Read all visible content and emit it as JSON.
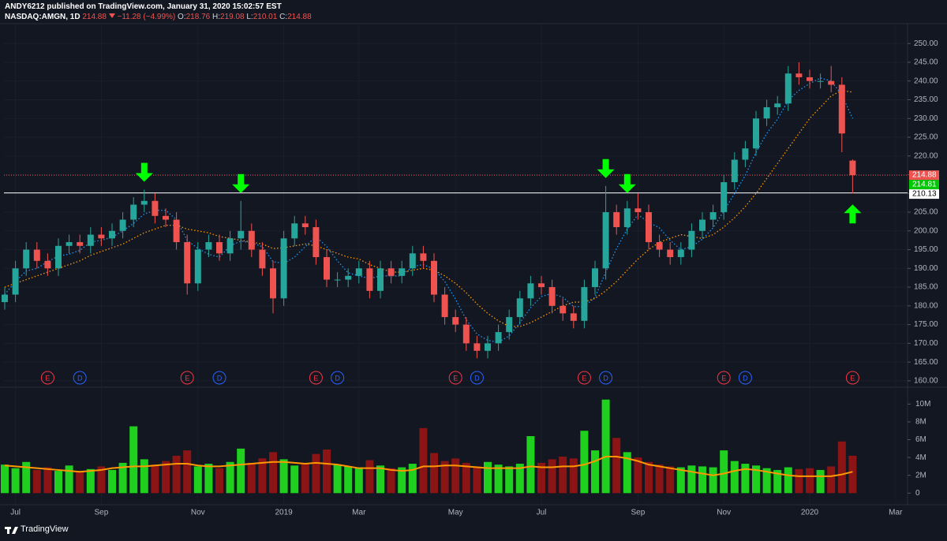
{
  "header": {
    "publisher_line": "ANDY6212 published on TradingView.com, January 31, 2020 15:02:57 EST",
    "symbol": "NASDAQ:AMGN, 1D",
    "change": "−11.28 (−4.99%)",
    "open_label": "O:",
    "high_label": "H:",
    "low_label": "L:",
    "close_label": "C:"
  },
  "footer": {
    "brand": "TradingView"
  },
  "chart_data": {
    "type": "candlestick",
    "grid": true,
    "up_color": "#26a69a",
    "down_color": "#ef5350",
    "categories": [
      null,
      "Jul",
      null,
      null,
      null,
      null,
      null,
      null,
      null,
      "Sep",
      null,
      null,
      null,
      null,
      null,
      null,
      null,
      null,
      "Nov",
      null,
      null,
      null,
      null,
      null,
      null,
      null,
      "2019",
      null,
      null,
      null,
      null,
      null,
      null,
      "Mar",
      null,
      null,
      null,
      null,
      null,
      null,
      null,
      null,
      "May",
      null,
      null,
      null,
      null,
      null,
      null,
      null,
      "Jul",
      null,
      null,
      null,
      null,
      null,
      null,
      null,
      null,
      "Sep",
      null,
      null,
      null,
      null,
      null,
      null,
      null,
      "Nov",
      null,
      null,
      null,
      null,
      null,
      null,
      null,
      "2020",
      null,
      null,
      null,
      null,
      null,
      null,
      null,
      "Mar",
      null
    ],
    "open": [
      181,
      183,
      190,
      195,
      192,
      190,
      196,
      197,
      196,
      199,
      198,
      200,
      203,
      207,
      208,
      204,
      203,
      197,
      186,
      195,
      197,
      194,
      198,
      200,
      195,
      190,
      182,
      198,
      202,
      201,
      193,
      187,
      187,
      188,
      190,
      184,
      190,
      188,
      190,
      194,
      192,
      183,
      177,
      175,
      170,
      168,
      170,
      173,
      177,
      182,
      186,
      185,
      180,
      178,
      176,
      185,
      190,
      205,
      201,
      206,
      205,
      197,
      195,
      193,
      195,
      200,
      203,
      205,
      213,
      219,
      222,
      230,
      233,
      234,
      242,
      241,
      240,
      240,
      239,
      218.76,
      null,
      null,
      null,
      null,
      null
    ],
    "high": [
      185,
      192,
      197,
      197,
      194,
      198,
      199,
      199,
      201,
      201,
      202,
      205,
      209,
      211,
      210,
      206,
      205,
      199,
      197,
      199,
      199,
      200,
      208,
      202,
      197,
      192,
      200,
      204,
      204,
      203,
      195,
      189,
      190,
      192,
      192,
      192,
      192,
      192,
      196,
      196,
      194,
      185,
      179,
      177,
      172,
      172,
      175,
      179,
      184,
      188,
      188,
      187,
      182,
      180,
      187,
      192,
      212,
      207,
      208,
      210,
      207,
      199,
      197,
      197,
      202,
      205,
      207,
      215,
      221,
      224,
      232,
      235,
      236,
      244,
      245,
      243,
      242,
      244,
      241,
      219.08,
      null,
      null,
      null,
      null,
      null
    ],
    "low": [
      179,
      181,
      188,
      190,
      188,
      188,
      194,
      194,
      194,
      196,
      196,
      198,
      201,
      205,
      202,
      201,
      195,
      183,
      184,
      193,
      192,
      192,
      195,
      193,
      188,
      178,
      180,
      196,
      199,
      191,
      185,
      185,
      185,
      186,
      182,
      182,
      186,
      186,
      188,
      190,
      181,
      175,
      173,
      168,
      166,
      166,
      168,
      171,
      175,
      180,
      183,
      178,
      176,
      174,
      174,
      183,
      187,
      199,
      199,
      203,
      195,
      193,
      191,
      191,
      193,
      198,
      201,
      203,
      211,
      217,
      220,
      228,
      231,
      232,
      239,
      238,
      238,
      237,
      221,
      210.01,
      null,
      null,
      null,
      null,
      null
    ],
    "close": [
      183,
      190,
      195,
      192,
      190,
      196,
      197,
      196,
      199,
      198,
      200,
      203,
      207,
      208,
      204,
      203,
      197,
      186,
      195,
      197,
      194,
      198,
      200,
      195,
      190,
      182,
      198,
      202,
      201,
      193,
      187,
      187,
      188,
      190,
      184,
      190,
      188,
      190,
      194,
      192,
      183,
      177,
      175,
      170,
      168,
      170,
      173,
      177,
      182,
      186,
      185,
      180,
      178,
      176,
      185,
      190,
      205,
      201,
      206,
      205,
      197,
      195,
      193,
      195,
      200,
      203,
      205,
      213,
      219,
      222,
      230,
      233,
      234,
      242,
      241,
      240,
      240,
      239,
      226,
      214.88,
      null,
      null,
      null,
      null,
      null
    ],
    "ylim": [
      158.5,
      255.3
    ],
    "yticks": [
      {
        "value": 160,
        "label": "160.00"
      },
      {
        "value": 165,
        "label": "165.00"
      },
      {
        "value": 170,
        "label": "170.00"
      },
      {
        "value": 175,
        "label": "175.00"
      },
      {
        "value": 180,
        "label": "180.00"
      },
      {
        "value": 185,
        "label": "185.00"
      },
      {
        "value": 190,
        "label": "190.00"
      },
      {
        "value": 195,
        "label": "195.00"
      },
      {
        "value": 200,
        "label": "200.00"
      },
      {
        "value": 205,
        "label": "205.00"
      },
      {
        "value": 210,
        "label": "210.00"
      },
      {
        "value": 215,
        "label": "215.00"
      },
      {
        "value": 220,
        "label": "220.00"
      },
      {
        "value": 225,
        "label": "225.00"
      },
      {
        "value": 230,
        "label": "230.00"
      },
      {
        "value": 235,
        "label": "235.00"
      },
      {
        "value": 240,
        "label": "240.00"
      },
      {
        "value": 245,
        "label": "245.00"
      },
      {
        "value": 250,
        "label": "250.00"
      }
    ],
    "moving_averages": [
      {
        "color": "#2196f3",
        "values": [
          183,
          186.5,
          189.3,
          190,
          191.8,
          193.3,
          193.8,
          194.8,
          197,
          197.5,
          198.3,
          200,
          202,
          204.5,
          205.5,
          205.5,
          203,
          197.5,
          195.3,
          193.8,
          193,
          196,
          197.3,
          196.8,
          195.8,
          191.8,
          191.3,
          193,
          195.8,
          198.5,
          195.8,
          192,
          188.8,
          188,
          187.3,
          188,
          188,
          188,
          190.5,
          191,
          189.8,
          186.5,
          181.8,
          176.3,
          172.5,
          170.8,
          170.3,
          172,
          175.5,
          179.5,
          182.5,
          183.3,
          182.3,
          179.8,
          179.8,
          182.3,
          189,
          195.3,
          200.5,
          204.3,
          202.3,
          200.8,
          197.5,
          195,
          195.8,
          197.8,
          200.8,
          205.3,
          210,
          214.8,
          221,
          226,
          229.8,
          234.8,
          237.5,
          239.3,
          240.8,
          240,
          236.3,
          230,
          null,
          null,
          null,
          null,
          null
        ]
      },
      {
        "color": "#ff9800",
        "values": [
          185,
          186,
          187,
          188,
          189,
          190,
          191,
          192,
          193.5,
          194.5,
          195.5,
          196.5,
          198,
          199.5,
          200.5,
          201.5,
          201.5,
          200.5,
          200,
          199.5,
          198.5,
          198,
          197.5,
          197,
          196.5,
          195.3,
          195.5,
          196,
          196.5,
          196,
          195,
          194,
          193,
          192.5,
          191,
          190,
          189,
          189,
          189.5,
          190,
          189.5,
          188,
          186,
          183.5,
          180.5,
          178,
          176,
          174.5,
          174.5,
          175.5,
          177,
          178.5,
          180,
          181,
          181,
          182,
          184,
          186.5,
          189.5,
          192.5,
          195,
          197,
          198,
          199,
          198.5,
          198,
          199,
          201,
          203.5,
          206.5,
          210,
          214,
          218,
          222,
          226,
          230,
          233,
          236,
          237.5,
          237,
          null,
          null,
          null,
          null,
          null
        ]
      }
    ],
    "price_lines": [
      {
        "value": 214.88,
        "color": "#ef5350",
        "dashed": true
      },
      {
        "value": 214.81,
        "color": "#00c805",
        "dashed": null
      },
      {
        "value": 210.13,
        "color": "#ffffff",
        "dashed": false
      }
    ],
    "events": [
      {
        "label": "E",
        "slot": 4
      },
      {
        "label": "D",
        "slot": 7
      },
      {
        "label": "E",
        "slot": 17
      },
      {
        "label": "D",
        "slot": 20
      },
      {
        "label": "E",
        "slot": 29
      },
      {
        "label": "D",
        "slot": 31
      },
      {
        "label": "E",
        "slot": 42
      },
      {
        "label": "D",
        "slot": 44
      },
      {
        "label": "E",
        "slot": 54
      },
      {
        "label": "D",
        "slot": 56
      },
      {
        "label": "E",
        "slot": 67
      },
      {
        "label": "D",
        "slot": 69
      },
      {
        "label": "E",
        "slot": 79
      }
    ],
    "arrows": [
      {
        "slot": 13,
        "direction": "down"
      },
      {
        "slot": 22,
        "direction": "down"
      },
      {
        "slot": 56,
        "direction": "down"
      },
      {
        "slot": 58,
        "direction": "down"
      },
      {
        "slot": 79,
        "direction": "up"
      }
    ],
    "volume": {
      "up_color": "#1fd01f",
      "down_color": "#8b1414",
      "ma_color": "#ff9800",
      "values": [
        3.2,
        2.8,
        3.5,
        2.6,
        2.9,
        2.5,
        3.1,
        2.4,
        2.7,
        3.0,
        2.6,
        3.4,
        7.5,
        3.8,
        3.2,
        3.6,
        4.2,
        4.8,
        3.0,
        3.3,
        2.8,
        3.5,
        5.0,
        3.4,
        3.9,
        4.6,
        3.8,
        3.1,
        3.3,
        4.4,
        4.9,
        3.2,
        3.0,
        2.9,
        3.7,
        3.1,
        2.8,
        2.9,
        3.3,
        7.3,
        4.5,
        3.6,
        3.9,
        3.4,
        3.0,
        3.5,
        3.2,
        3.0,
        3.3,
        6.4,
        3.4,
        3.8,
        4.1,
        3.9,
        7.0,
        4.8,
        10.5,
        6.2,
        4.6,
        4.0,
        3.5,
        3.2,
        3.0,
        2.9,
        3.1,
        3.0,
        2.9,
        4.8,
        3.6,
        3.3,
        3.1,
        2.8,
        2.6,
        2.9,
        2.7,
        2.8,
        2.6,
        3.0,
        5.8,
        4.2,
        null,
        null,
        null,
        null,
        null
      ],
      "ma_values": [
        3.1,
        3.0,
        2.9,
        2.8,
        2.7,
        2.6,
        2.5,
        2.4,
        2.5,
        2.6,
        2.8,
        2.9,
        3.0,
        3.0,
        3.1,
        3.2,
        3.3,
        3.3,
        3.1,
        3.0,
        3.0,
        3.1,
        3.2,
        3.3,
        3.4,
        3.5,
        3.5,
        3.4,
        3.3,
        3.4,
        3.3,
        3.2,
        3.0,
        2.8,
        2.8,
        2.8,
        2.6,
        2.5,
        2.6,
        3.0,
        3.0,
        3.1,
        3.1,
        3.0,
        2.9,
        2.8,
        2.8,
        2.8,
        2.8,
        3.0,
        2.9,
        2.9,
        3.0,
        3.0,
        3.2,
        3.6,
        4.1,
        4.1,
        3.9,
        3.6,
        3.2,
        3.0,
        2.8,
        2.6,
        2.4,
        2.2,
        2.0,
        2.2,
        2.5,
        2.7,
        2.6,
        2.4,
        2.2,
        2.0,
        1.9,
        1.9,
        1.9,
        1.9,
        2.1,
        2.4,
        null,
        null,
        null,
        null,
        null
      ],
      "ylim": [
        -1.3,
        11.8
      ],
      "yticks": [
        0,
        {
          "value": 2,
          "label": "2M"
        },
        {
          "value": 4,
          "label": "4M"
        },
        {
          "value": 6,
          "label": "6M"
        },
        {
          "value": 8,
          "label": "8M"
        },
        {
          "value": 10,
          "label": "10M"
        }
      ]
    }
  }
}
